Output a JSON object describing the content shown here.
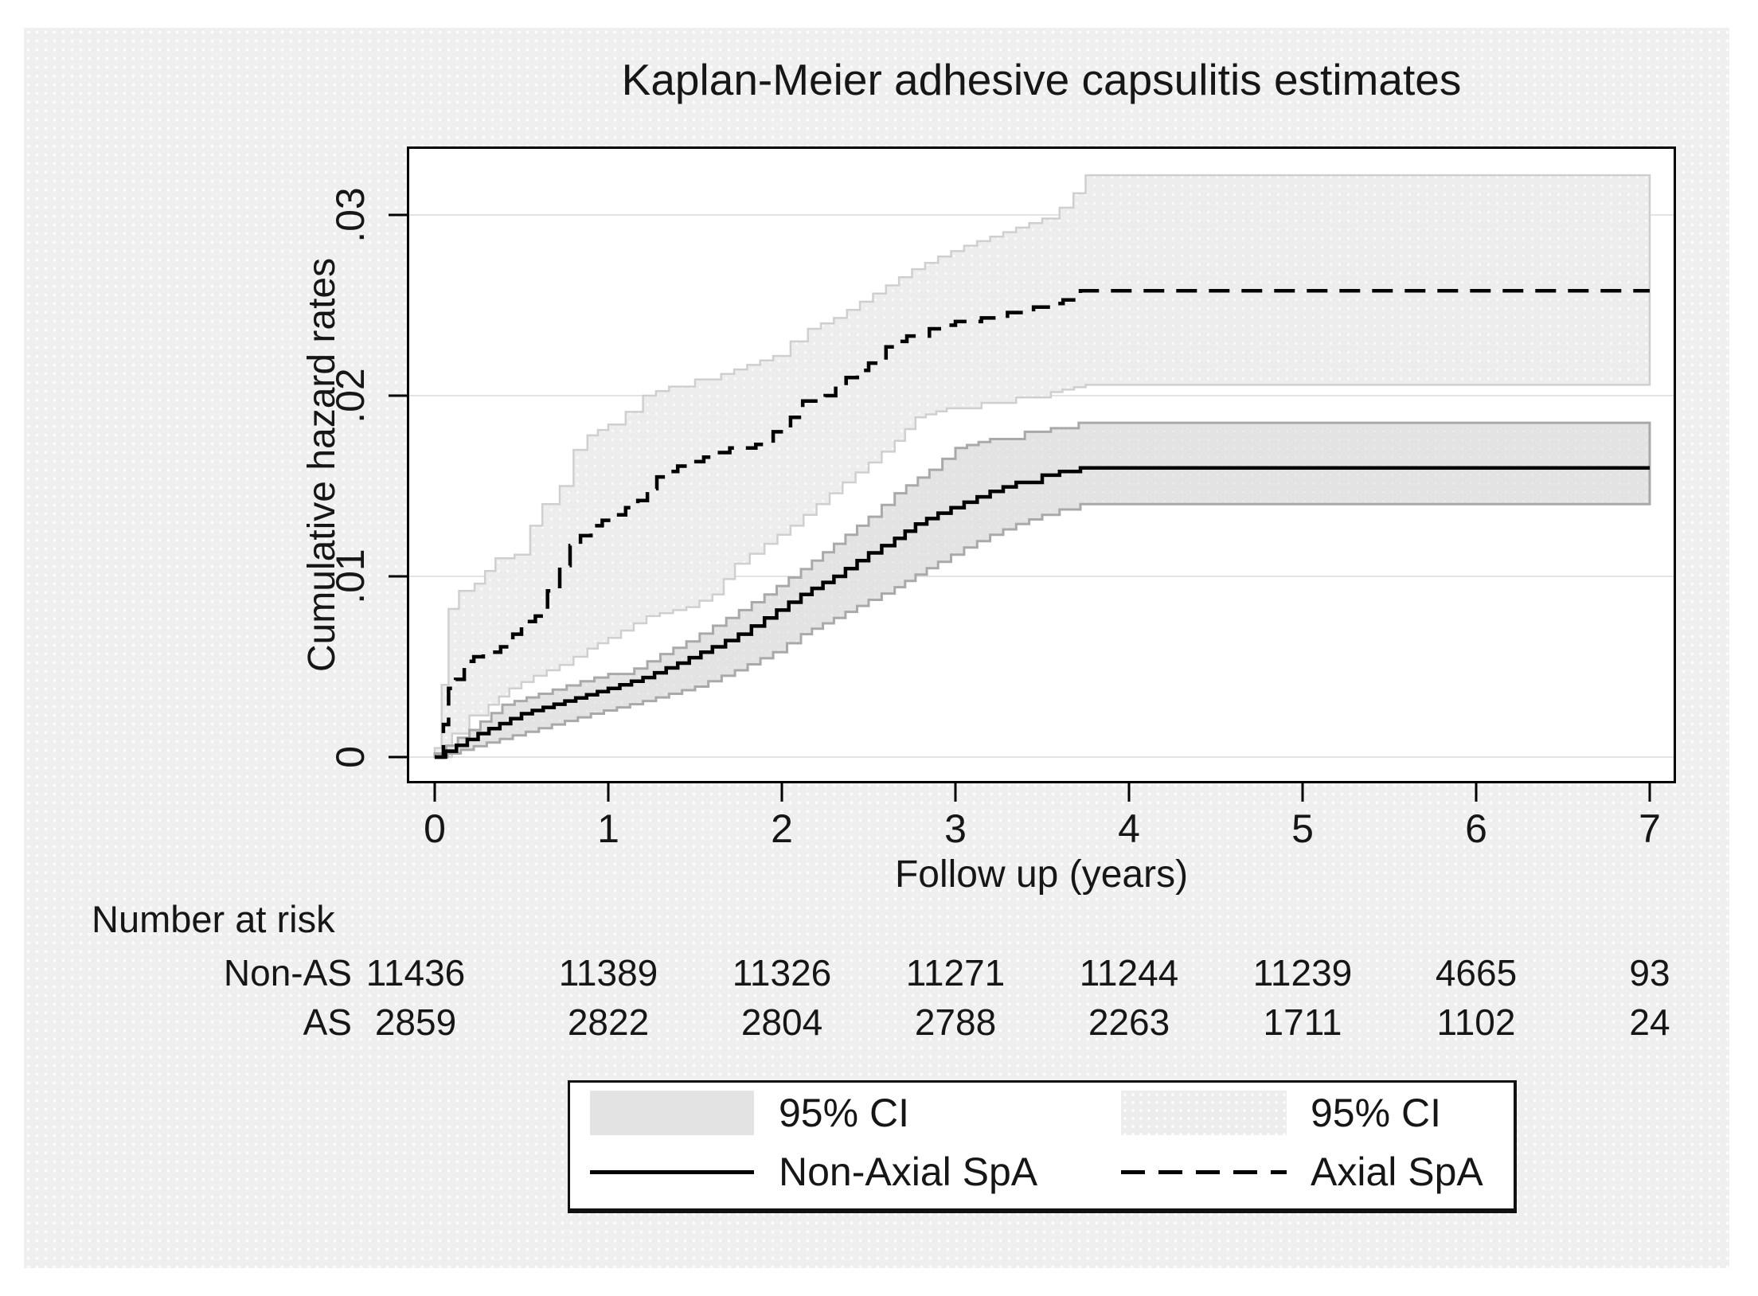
{
  "chart_data": {
    "type": "line",
    "title": "Kaplan-Meier adhesive capsulitis estimates",
    "xlabel": "Follow up (years)",
    "ylabel": "Cumulative hazard rates",
    "xlim": [
      0,
      7
    ],
    "ylim": [
      0,
      0.0335
    ],
    "x_tick_values": [
      0,
      1,
      2,
      3,
      4,
      5,
      6,
      7
    ],
    "x_tick_labels": [
      "0",
      "1",
      "2",
      "3",
      "4",
      "5",
      "6",
      "7"
    ],
    "y_tick_values": [
      0,
      0.01,
      0.02,
      0.03
    ],
    "y_tick_labels": [
      "0",
      ".01",
      ".02",
      ".03"
    ],
    "grid": "horizontal",
    "legend_position": "bottom",
    "series": [
      {
        "name": "Axial SpA 95% CI",
        "type": "band",
        "fill": "#ededed",
        "edge_color": "#cfcfcf",
        "upper": [
          [
            0,
            0.0005
          ],
          [
            0.04,
            0.004
          ],
          [
            0.08,
            0.0082
          ],
          [
            0.14,
            0.0092
          ],
          [
            0.23,
            0.0096
          ],
          [
            0.35,
            0.011
          ],
          [
            0.46,
            0.0112
          ],
          [
            0.55,
            0.0128
          ],
          [
            0.62,
            0.014
          ],
          [
            0.72,
            0.015
          ],
          [
            0.8,
            0.017
          ],
          [
            0.88,
            0.0178
          ],
          [
            1.0,
            0.0184
          ],
          [
            1.1,
            0.0191
          ],
          [
            1.2,
            0.02
          ],
          [
            1.35,
            0.0205
          ],
          [
            1.5,
            0.0209
          ],
          [
            1.65,
            0.0212
          ],
          [
            1.8,
            0.0217
          ],
          [
            1.95,
            0.0222
          ],
          [
            2.05,
            0.023
          ],
          [
            2.15,
            0.0237
          ],
          [
            2.3,
            0.0243
          ],
          [
            2.45,
            0.0252
          ],
          [
            2.6,
            0.0261
          ],
          [
            2.75,
            0.027
          ],
          [
            2.9,
            0.0277
          ],
          [
            3.05,
            0.0283
          ],
          [
            3.2,
            0.0288
          ],
          [
            3.35,
            0.0293
          ],
          [
            3.5,
            0.0298
          ],
          [
            3.6,
            0.0304
          ],
          [
            3.68,
            0.0312
          ],
          [
            3.75,
            0.0322
          ],
          [
            7,
            0.0322
          ]
        ],
        "lower": [
          [
            0,
            0
          ],
          [
            0.1,
            0.0013
          ],
          [
            0.2,
            0.0023
          ],
          [
            0.31,
            0.0029
          ],
          [
            0.43,
            0.0038
          ],
          [
            0.57,
            0.0045
          ],
          [
            0.72,
            0.0051
          ],
          [
            0.88,
            0.006
          ],
          [
            1.0,
            0.0066
          ],
          [
            1.22,
            0.0078
          ],
          [
            1.45,
            0.0083
          ],
          [
            1.6,
            0.009
          ],
          [
            1.73,
            0.0107
          ],
          [
            1.9,
            0.0118
          ],
          [
            2.05,
            0.0128
          ],
          [
            2.2,
            0.014
          ],
          [
            2.35,
            0.0152
          ],
          [
            2.5,
            0.0163
          ],
          [
            2.65,
            0.0175
          ],
          [
            2.77,
            0.0188
          ],
          [
            2.95,
            0.0193
          ],
          [
            3.15,
            0.0196
          ],
          [
            3.35,
            0.0199
          ],
          [
            3.55,
            0.0202
          ],
          [
            3.75,
            0.0206
          ],
          [
            7,
            0.0206
          ]
        ]
      },
      {
        "name": "Non-Axial SpA 95% CI",
        "type": "band",
        "fill": "#e3e3e3",
        "edge_color": "#a9a9a9",
        "upper": [
          [
            0,
            0.0002
          ],
          [
            0.2,
            0.0015
          ],
          [
            0.39,
            0.0029
          ],
          [
            0.6,
            0.0035
          ],
          [
            0.84,
            0.0042
          ],
          [
            1.0,
            0.0046
          ],
          [
            1.15,
            0.0049
          ],
          [
            1.3,
            0.0057
          ],
          [
            1.45,
            0.0064
          ],
          [
            1.68,
            0.0077
          ],
          [
            1.9,
            0.009
          ],
          [
            2.11,
            0.0104
          ],
          [
            2.3,
            0.0118
          ],
          [
            2.5,
            0.0133
          ],
          [
            2.65,
            0.0146
          ],
          [
            2.85,
            0.0159
          ],
          [
            3.0,
            0.0171
          ],
          [
            3.2,
            0.0176
          ],
          [
            3.4,
            0.018
          ],
          [
            3.55,
            0.0182
          ],
          [
            3.71,
            0.0185
          ],
          [
            7,
            0.0185
          ]
        ],
        "lower": [
          [
            0,
            0
          ],
          [
            0.3,
            0.0008
          ],
          [
            0.6,
            0.0016
          ],
          [
            0.9,
            0.0024
          ],
          [
            1.2,
            0.0031
          ],
          [
            1.5,
            0.0039
          ],
          [
            1.73,
            0.0048
          ],
          [
            1.95,
            0.0058
          ],
          [
            2.11,
            0.0068
          ],
          [
            2.3,
            0.0077
          ],
          [
            2.5,
            0.0087
          ],
          [
            2.65,
            0.0094
          ],
          [
            2.77,
            0.0101
          ],
          [
            2.9,
            0.0108
          ],
          [
            3.05,
            0.0116
          ],
          [
            3.2,
            0.0123
          ],
          [
            3.35,
            0.0129
          ],
          [
            3.5,
            0.0134
          ],
          [
            3.6,
            0.0137
          ],
          [
            3.72,
            0.014
          ],
          [
            7,
            0.014
          ]
        ]
      },
      {
        "name": "Axial SpA",
        "type": "step",
        "line_style": "dashed",
        "color": "#000000",
        "points": [
          [
            0,
            0
          ],
          [
            0.05,
            0.0018
          ],
          [
            0.08,
            0.0038
          ],
          [
            0.12,
            0.0043
          ],
          [
            0.17,
            0.0053
          ],
          [
            0.28,
            0.0058
          ],
          [
            0.38,
            0.0061
          ],
          [
            0.45,
            0.0068
          ],
          [
            0.5,
            0.0075
          ],
          [
            0.58,
            0.0078
          ],
          [
            0.65,
            0.0092
          ],
          [
            0.72,
            0.0106
          ],
          [
            0.78,
            0.0117
          ],
          [
            0.9,
            0.0128
          ],
          [
            1.03,
            0.0134
          ],
          [
            1.17,
            0.0142
          ],
          [
            1.28,
            0.0155
          ],
          [
            1.4,
            0.0161
          ],
          [
            1.55,
            0.0166
          ],
          [
            1.7,
            0.0171
          ],
          [
            1.85,
            0.0173
          ],
          [
            1.95,
            0.018
          ],
          [
            2.05,
            0.0188
          ],
          [
            2.12,
            0.0197
          ],
          [
            2.25,
            0.02
          ],
          [
            2.37,
            0.021
          ],
          [
            2.5,
            0.0218
          ],
          [
            2.6,
            0.0227
          ],
          [
            2.72,
            0.0233
          ],
          [
            2.85,
            0.0237
          ],
          [
            3.0,
            0.0241
          ],
          [
            3.15,
            0.0243
          ],
          [
            3.3,
            0.0246
          ],
          [
            3.45,
            0.0249
          ],
          [
            3.55,
            0.0251
          ],
          [
            3.62,
            0.0253
          ],
          [
            3.72,
            0.0258
          ],
          [
            7,
            0.0258
          ]
        ]
      },
      {
        "name": "Non-Axial SpA",
        "type": "step",
        "line_style": "solid",
        "color": "#000000",
        "points": [
          [
            0,
            0
          ],
          [
            0.25,
            0.0013
          ],
          [
            0.5,
            0.0024
          ],
          [
            0.75,
            0.0031
          ],
          [
            1.0,
            0.0038
          ],
          [
            1.2,
            0.0044
          ],
          [
            1.4,
            0.0052
          ],
          [
            1.6,
            0.0061
          ],
          [
            1.75,
            0.0068
          ],
          [
            1.9,
            0.0077
          ],
          [
            2.11,
            0.009
          ],
          [
            2.3,
            0.01
          ],
          [
            2.5,
            0.0113
          ],
          [
            2.65,
            0.0121
          ],
          [
            2.77,
            0.0129
          ],
          [
            2.9,
            0.0135
          ],
          [
            3.05,
            0.0141
          ],
          [
            3.2,
            0.0147
          ],
          [
            3.35,
            0.0152
          ],
          [
            3.5,
            0.0156
          ],
          [
            3.6,
            0.0158
          ],
          [
            3.72,
            0.016
          ],
          [
            7,
            0.016
          ]
        ]
      }
    ]
  },
  "risk_table": {
    "heading": "Number at risk",
    "time_points": [
      0,
      1,
      2,
      3,
      4,
      5,
      6,
      7
    ],
    "rows": [
      {
        "label": "Non-AS",
        "values": [
          "11436",
          "11389",
          "11326",
          "11271",
          "11244",
          "11239",
          "4665",
          "93"
        ]
      },
      {
        "label": "AS",
        "values": [
          "2859",
          "2822",
          "2804",
          "2788",
          "2263",
          "1711",
          "1102",
          "24"
        ]
      }
    ]
  },
  "legend": {
    "items": [
      {
        "swatch": "ci-band-solid",
        "label": "95% CI"
      },
      {
        "swatch": "line-solid",
        "label": "Non-Axial SpA"
      },
      {
        "swatch": "ci-band-dotted",
        "label": "95% CI"
      },
      {
        "swatch": "line-dashed",
        "label": "Axial SpA"
      }
    ]
  },
  "colors": {
    "canvas_bg": "#efefef",
    "plot_bg": "#ffffff",
    "gridline": "#e3e3e3",
    "axis": "#000000",
    "axial_band_fill": "#ededed",
    "axial_band_edge": "#cfcfcf",
    "nonaxial_band_fill": "#e3e3e3",
    "nonaxial_band_edge": "#a9a9a9"
  }
}
